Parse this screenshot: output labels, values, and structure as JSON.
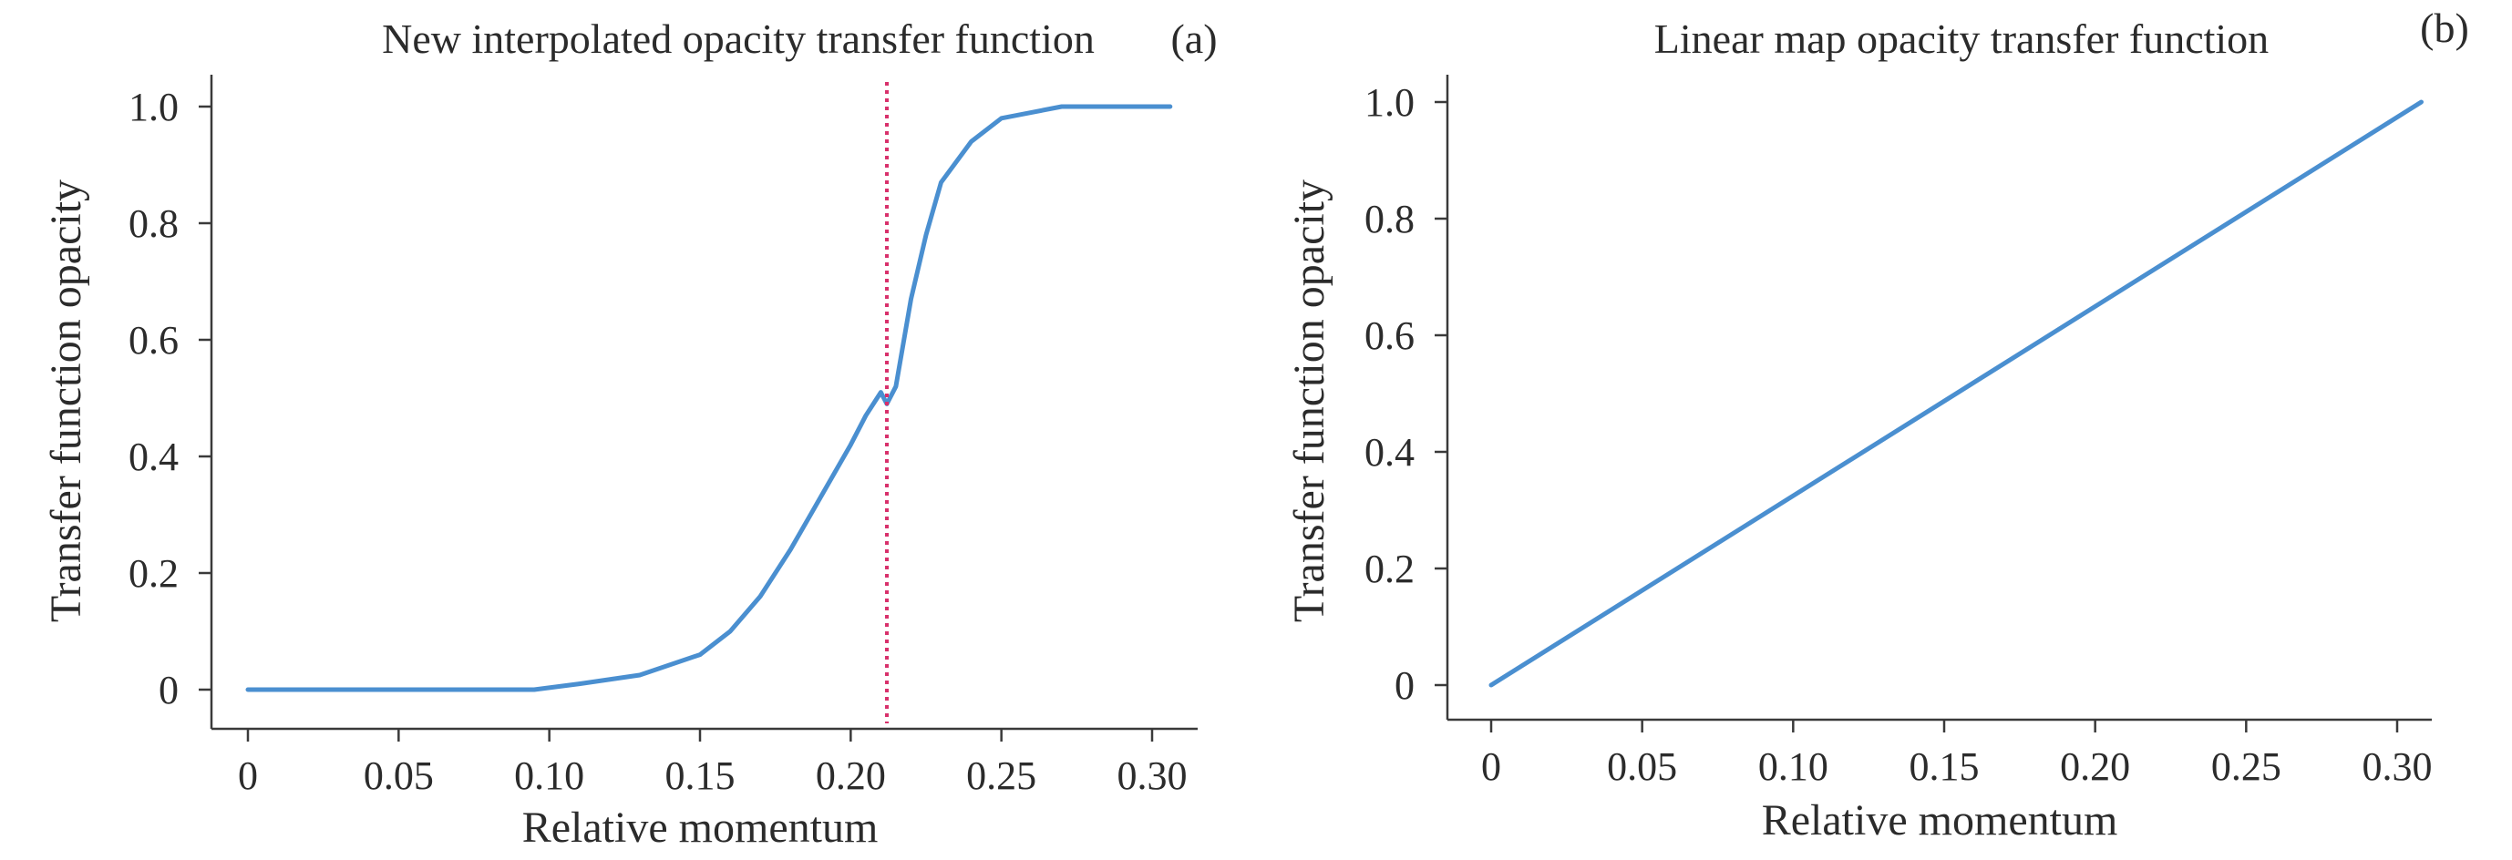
{
  "chart_data": [
    {
      "type": "line",
      "title": "New interpolated opacity transfer function",
      "panel_label": "(a)",
      "xlabel": "Relative momentum",
      "ylabel": "Transfer function opacity",
      "xlim": [
        0,
        0.31
      ],
      "ylim": [
        0,
        1.0
      ],
      "xticks": [
        0,
        0.05,
        0.1,
        0.15,
        0.2,
        0.25,
        0.3
      ],
      "xtick_labels": [
        "0",
        "0.05",
        "0.10",
        "0.15",
        "0.20",
        "0.25",
        "0.30"
      ],
      "yticks": [
        0,
        0.2,
        0.4,
        0.6,
        0.8,
        1.0
      ],
      "ytick_labels": [
        "0",
        "0.2",
        "0.4",
        "0.6",
        "0.8",
        "1.0"
      ],
      "grid": false,
      "series": [
        {
          "color": "#4a8fd0",
          "x": [
            0,
            0.05,
            0.095,
            0.11,
            0.13,
            0.15,
            0.16,
            0.17,
            0.18,
            0.19,
            0.2,
            0.205,
            0.21,
            0.212,
            0.215,
            0.22,
            0.225,
            0.23,
            0.24,
            0.25,
            0.26,
            0.27,
            0.3,
            0.306
          ],
          "y": [
            0,
            0,
            0,
            0.01,
            0.025,
            0.06,
            0.1,
            0.16,
            0.24,
            0.33,
            0.42,
            0.47,
            0.51,
            0.49,
            0.52,
            0.67,
            0.78,
            0.87,
            0.94,
            0.98,
            0.99,
            1.0,
            1.0,
            1.0
          ]
        }
      ],
      "reference_line": {
        "x": 0.212,
        "color": "#d8306b",
        "style": "dotted"
      }
    },
    {
      "type": "line",
      "title": "Linear map opacity transfer function",
      "panel_label": "(b)",
      "xlabel": "Relative momentum",
      "ylabel": "Transfer function opacity",
      "xlim": [
        0,
        0.31
      ],
      "ylim": [
        0,
        1.0
      ],
      "xticks": [
        0,
        0.05,
        0.1,
        0.15,
        0.2,
        0.25,
        0.3
      ],
      "xtick_labels": [
        "0",
        "0.05",
        "0.10",
        "0.15",
        "0.20",
        "0.25",
        "0.30"
      ],
      "yticks": [
        0,
        0.2,
        0.4,
        0.6,
        0.8,
        1.0
      ],
      "ytick_labels": [
        "0",
        "0.2",
        "0.4",
        "0.6",
        "0.8",
        "1.0"
      ],
      "grid": false,
      "series": [
        {
          "color": "#4a8fd0",
          "x": [
            0,
            0.308
          ],
          "y": [
            0,
            1.0
          ]
        }
      ]
    }
  ]
}
